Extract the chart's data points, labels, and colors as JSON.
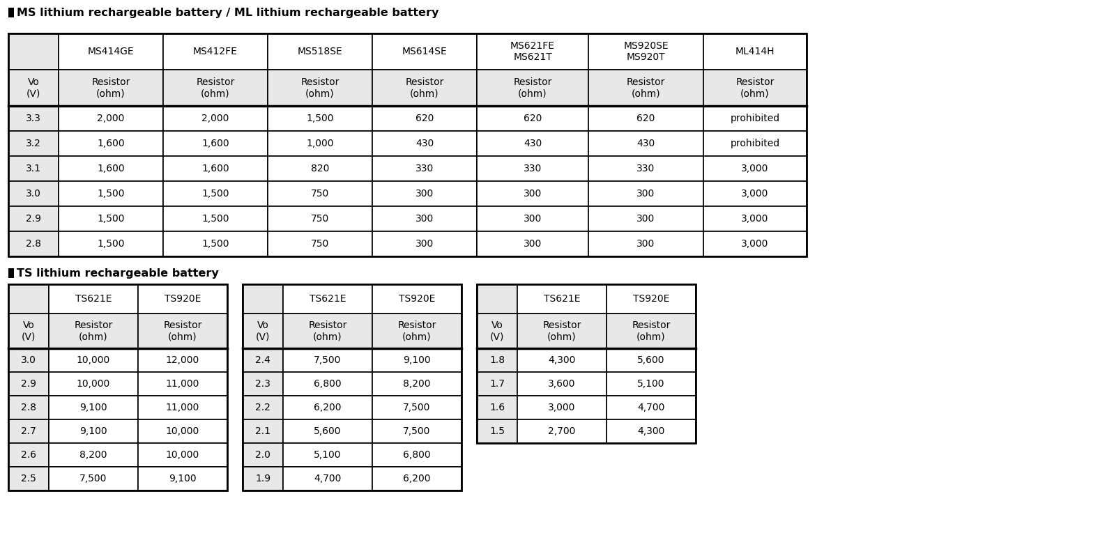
{
  "title1": "MS lithium rechargeable battery / ML lithium rechargeable battery",
  "title2": "TS lithium rechargeable battery",
  "header_bg": "#e8e8e8",
  "cell_bg": "#ffffff",
  "border_color": "#000000",
  "text_color": "#000000",
  "ms_col_headers": [
    "",
    "MS414GE",
    "MS412FE",
    "MS518SE",
    "MS614SE",
    "MS621FE\nMS621T",
    "MS920SE\nMS920T",
    "ML414H"
  ],
  "ms_rows": [
    [
      "Vo\n(V)",
      "Resistor\n(ohm)",
      "Resistor\n(ohm)",
      "Resistor\n(ohm)",
      "Resistor\n(ohm)",
      "Resistor\n(ohm)",
      "Resistor\n(ohm)",
      "Resistor\n(ohm)"
    ],
    [
      "3.3",
      "2,000",
      "2,000",
      "1,500",
      "620",
      "620",
      "620",
      "prohibited"
    ],
    [
      "3.2",
      "1,600",
      "1,600",
      "1,000",
      "430",
      "430",
      "430",
      "prohibited"
    ],
    [
      "3.1",
      "1,600",
      "1,600",
      "820",
      "330",
      "330",
      "330",
      "3,000"
    ],
    [
      "3.0",
      "1,500",
      "1,500",
      "750",
      "300",
      "300",
      "300",
      "3,000"
    ],
    [
      "2.9",
      "1,500",
      "1,500",
      "750",
      "300",
      "300",
      "300",
      "3,000"
    ],
    [
      "2.8",
      "1,500",
      "1,500",
      "750",
      "300",
      "300",
      "300",
      "3,000"
    ]
  ],
  "ts1_col_headers": [
    "",
    "TS621E",
    "TS920E"
  ],
  "ts1_rows": [
    [
      "Vo\n(V)",
      "Resistor\n(ohm)",
      "Resistor\n(ohm)"
    ],
    [
      "3.0",
      "10,000",
      "12,000"
    ],
    [
      "2.9",
      "10,000",
      "11,000"
    ],
    [
      "2.8",
      "9,100",
      "11,000"
    ],
    [
      "2.7",
      "9,100",
      "10,000"
    ],
    [
      "2.6",
      "8,200",
      "10,000"
    ],
    [
      "2.5",
      "7,500",
      "9,100"
    ]
  ],
  "ts2_col_headers": [
    "",
    "TS621E",
    "TS920E"
  ],
  "ts2_rows": [
    [
      "Vo\n(V)",
      "Resistor\n(ohm)",
      "Resistor\n(ohm)"
    ],
    [
      "2.4",
      "7,500",
      "9,100"
    ],
    [
      "2.3",
      "6,800",
      "8,200"
    ],
    [
      "2.2",
      "6,200",
      "7,500"
    ],
    [
      "2.1",
      "5,600",
      "7,500"
    ],
    [
      "2.0",
      "5,100",
      "6,800"
    ],
    [
      "1.9",
      "4,700",
      "6,200"
    ]
  ],
  "ts3_col_headers": [
    "",
    "TS621E",
    "TS920E"
  ],
  "ts3_rows": [
    [
      "Vo\n(V)",
      "Resistor\n(ohm)",
      "Resistor\n(ohm)"
    ],
    [
      "1.8",
      "4,300",
      "5,600"
    ],
    [
      "1.7",
      "3,600",
      "5,100"
    ],
    [
      "1.6",
      "3,000",
      "4,700"
    ],
    [
      "1.5",
      "2,700",
      "4,300"
    ]
  ],
  "fig_w": 15.75,
  "fig_h": 7.88,
  "dpi": 100
}
